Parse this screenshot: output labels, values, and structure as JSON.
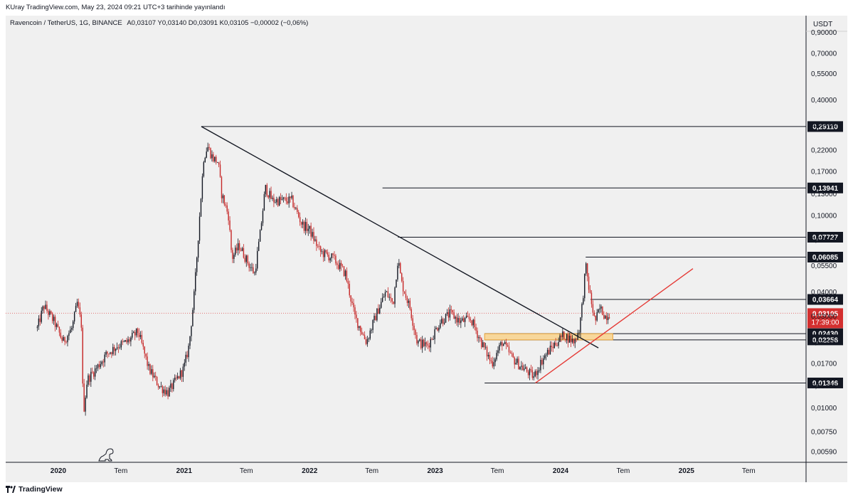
{
  "header": {
    "published": "KUray TradingView.com, May 23, 2024 09:21 UTC+3 tarihinde yayınlandı",
    "symbol_info": "Ravencoin / TetherUS, 1G, BINANCE",
    "ohlc": "A0,03107  Y0,03140  D0,03091  K0,03105  −0,00002 (−0,06%)"
  },
  "footer": {
    "brand": "TradingView"
  },
  "chart_data": {
    "type": "candlestick",
    "title": "Ravencoin / TetherUS, 1G, BINANCE",
    "currency_label": "USDT",
    "y_scale": "log",
    "ylim": [
      0.0052,
      1.1
    ],
    "xlim": [
      "2019-08-01",
      "2025-12-15"
    ],
    "y_ticks": [
      {
        "v": 0.9,
        "label": "0,90000"
      },
      {
        "v": 0.7,
        "label": "0,70000"
      },
      {
        "v": 0.55,
        "label": "0,55000"
      },
      {
        "v": 0.4,
        "label": "0,40000"
      },
      {
        "v": 0.3,
        "label": "0,30000"
      },
      {
        "v": 0.22,
        "label": "0,22000"
      },
      {
        "v": 0.17,
        "label": "0,17000"
      },
      {
        "v": 0.13,
        "label": "0,13000"
      },
      {
        "v": 0.1,
        "label": "0,10000"
      },
      {
        "v": 0.075,
        "label": "0,07500"
      },
      {
        "v": 0.055,
        "label": "0,05500"
      },
      {
        "v": 0.04,
        "label": "0,04000"
      },
      {
        "v": 0.03,
        "label": "0,03000"
      },
      {
        "v": 0.022,
        "label": "0,02200"
      },
      {
        "v": 0.017,
        "label": "0,01700"
      },
      {
        "v": 0.013,
        "label": "0,01300"
      },
      {
        "v": 0.01,
        "label": "0,01000"
      },
      {
        "v": 0.0075,
        "label": "0,00750"
      },
      {
        "v": 0.0059,
        "label": "0,00590"
      }
    ],
    "x_ticks": [
      {
        "date": "2020-01-01",
        "label": "2020",
        "bold": true
      },
      {
        "date": "2020-07-01",
        "label": "Tem",
        "bold": false
      },
      {
        "date": "2021-01-01",
        "label": "2021",
        "bold": true
      },
      {
        "date": "2021-07-01",
        "label": "Tem",
        "bold": false
      },
      {
        "date": "2022-01-01",
        "label": "2022",
        "bold": true
      },
      {
        "date": "2022-07-01",
        "label": "Tem",
        "bold": false
      },
      {
        "date": "2023-01-01",
        "label": "2023",
        "bold": true
      },
      {
        "date": "2023-07-01",
        "label": "Tem",
        "bold": false
      },
      {
        "date": "2024-01-01",
        "label": "2024",
        "bold": true
      },
      {
        "date": "2024-07-01",
        "label": "Tem",
        "bold": false
      },
      {
        "date": "2025-01-01",
        "label": "2025",
        "bold": true
      },
      {
        "date": "2025-07-01",
        "label": "Tem",
        "bold": false
      }
    ],
    "price_path": [
      [
        "2019-11-01",
        0.026
      ],
      [
        "2019-11-20",
        0.034
      ],
      [
        "2019-12-20",
        0.028
      ],
      [
        "2020-01-15",
        0.022
      ],
      [
        "2020-02-10",
        0.026
      ],
      [
        "2020-02-25",
        0.035
      ],
      [
        "2020-03-10",
        0.026
      ],
      [
        "2020-03-13",
        0.009
      ],
      [
        "2020-03-25",
        0.014
      ],
      [
        "2020-04-20",
        0.016
      ],
      [
        "2020-05-20",
        0.019
      ],
      [
        "2020-06-20",
        0.021
      ],
      [
        "2020-07-20",
        0.022
      ],
      [
        "2020-08-20",
        0.025
      ],
      [
        "2020-09-20",
        0.016
      ],
      [
        "2020-10-20",
        0.013
      ],
      [
        "2020-11-15",
        0.012
      ],
      [
        "2020-12-10",
        0.014
      ],
      [
        "2020-12-31",
        0.016
      ],
      [
        "2021-01-15",
        0.021
      ],
      [
        "2021-01-31",
        0.04
      ],
      [
        "2021-02-15",
        0.1
      ],
      [
        "2021-02-27",
        0.2
      ],
      [
        "2021-03-10",
        0.23
      ],
      [
        "2021-03-25",
        0.2
      ],
      [
        "2021-04-10",
        0.19
      ],
      [
        "2021-04-20",
        0.13
      ],
      [
        "2021-05-10",
        0.1
      ],
      [
        "2021-05-20",
        0.06
      ],
      [
        "2021-06-10",
        0.07
      ],
      [
        "2021-07-10",
        0.055
      ],
      [
        "2021-07-25",
        0.05
      ],
      [
        "2021-08-10",
        0.08
      ],
      [
        "2021-08-25",
        0.14
      ],
      [
        "2021-09-15",
        0.12
      ],
      [
        "2021-10-15",
        0.12
      ],
      [
        "2021-11-10",
        0.12
      ],
      [
        "2021-12-10",
        0.09
      ],
      [
        "2021-12-31",
        0.085
      ],
      [
        "2022-01-31",
        0.065
      ],
      [
        "2022-03-10",
        0.06
      ],
      [
        "2022-04-15",
        0.05
      ],
      [
        "2022-05-12",
        0.03
      ],
      [
        "2022-06-15",
        0.022
      ],
      [
        "2022-07-15",
        0.031
      ],
      [
        "2022-08-10",
        0.04
      ],
      [
        "2022-09-01",
        0.035
      ],
      [
        "2022-09-15",
        0.06
      ],
      [
        "2022-09-25",
        0.045
      ],
      [
        "2022-10-20",
        0.033
      ],
      [
        "2022-11-10",
        0.022
      ],
      [
        "2022-12-10",
        0.021
      ],
      [
        "2023-01-15",
        0.028
      ],
      [
        "2023-02-15",
        0.031
      ],
      [
        "2023-03-15",
        0.028
      ],
      [
        "2023-04-15",
        0.029
      ],
      [
        "2023-05-15",
        0.022
      ],
      [
        "2023-06-15",
        0.017
      ],
      [
        "2023-07-15",
        0.022
      ],
      [
        "2023-08-15",
        0.018
      ],
      [
        "2023-09-15",
        0.016
      ],
      [
        "2023-10-15",
        0.0145
      ],
      [
        "2023-11-10",
        0.018
      ],
      [
        "2023-12-10",
        0.021
      ],
      [
        "2024-01-10",
        0.024
      ],
      [
        "2024-02-10",
        0.022
      ],
      [
        "2024-02-25",
        0.026
      ],
      [
        "2024-03-05",
        0.036
      ],
      [
        "2024-03-14",
        0.055
      ],
      [
        "2024-03-25",
        0.04
      ],
      [
        "2024-04-10",
        0.028
      ],
      [
        "2024-04-25",
        0.033
      ],
      [
        "2024-05-10",
        0.03
      ],
      [
        "2024-05-23",
        0.031
      ]
    ],
    "horizontal_levels": [
      {
        "value": 0.2911,
        "label": "0,29110",
        "from": "2021-02-20"
      },
      {
        "value": 0.13941,
        "label": "0,13941",
        "from": "2022-08-01"
      },
      {
        "value": 0.07727,
        "label": "0,07727",
        "from": "2022-09-15"
      },
      {
        "value": 0.06085,
        "label": "0,06085",
        "from": "2024-03-14"
      },
      {
        "value": 0.03664,
        "label": "0,03664",
        "from": "2024-03-28"
      },
      {
        "value": 0.0243,
        "label": "0,02430",
        "from": "2023-05-25"
      },
      {
        "value": 0.02256,
        "label": "0,02256",
        "from": "2023-05-25"
      },
      {
        "value": 0.01346,
        "label": "0,01346",
        "from": "2023-05-25"
      }
    ],
    "current_price": {
      "value": 0.03105,
      "label": "0,03105",
      "countdown": "17:39:00"
    },
    "zone": {
      "from": "2023-05-25",
      "to": "2024-06-01",
      "high": 0.0243,
      "low": 0.02256
    },
    "trendlines": [
      {
        "color": "#131722",
        "points": [
          [
            "2021-02-20",
            0.2911
          ],
          [
            "2024-04-20",
            0.0205
          ]
        ]
      },
      {
        "color": "#e53935",
        "points": [
          [
            "2023-10-20",
            0.01346
          ],
          [
            "2025-01-20",
            0.053
          ]
        ]
      }
    ],
    "colors": {
      "up": "#131722",
      "down": "#c62828",
      "accent": "#e53935",
      "zone_fill": "#f7d79b",
      "zone_stroke": "#e9a33a"
    }
  }
}
